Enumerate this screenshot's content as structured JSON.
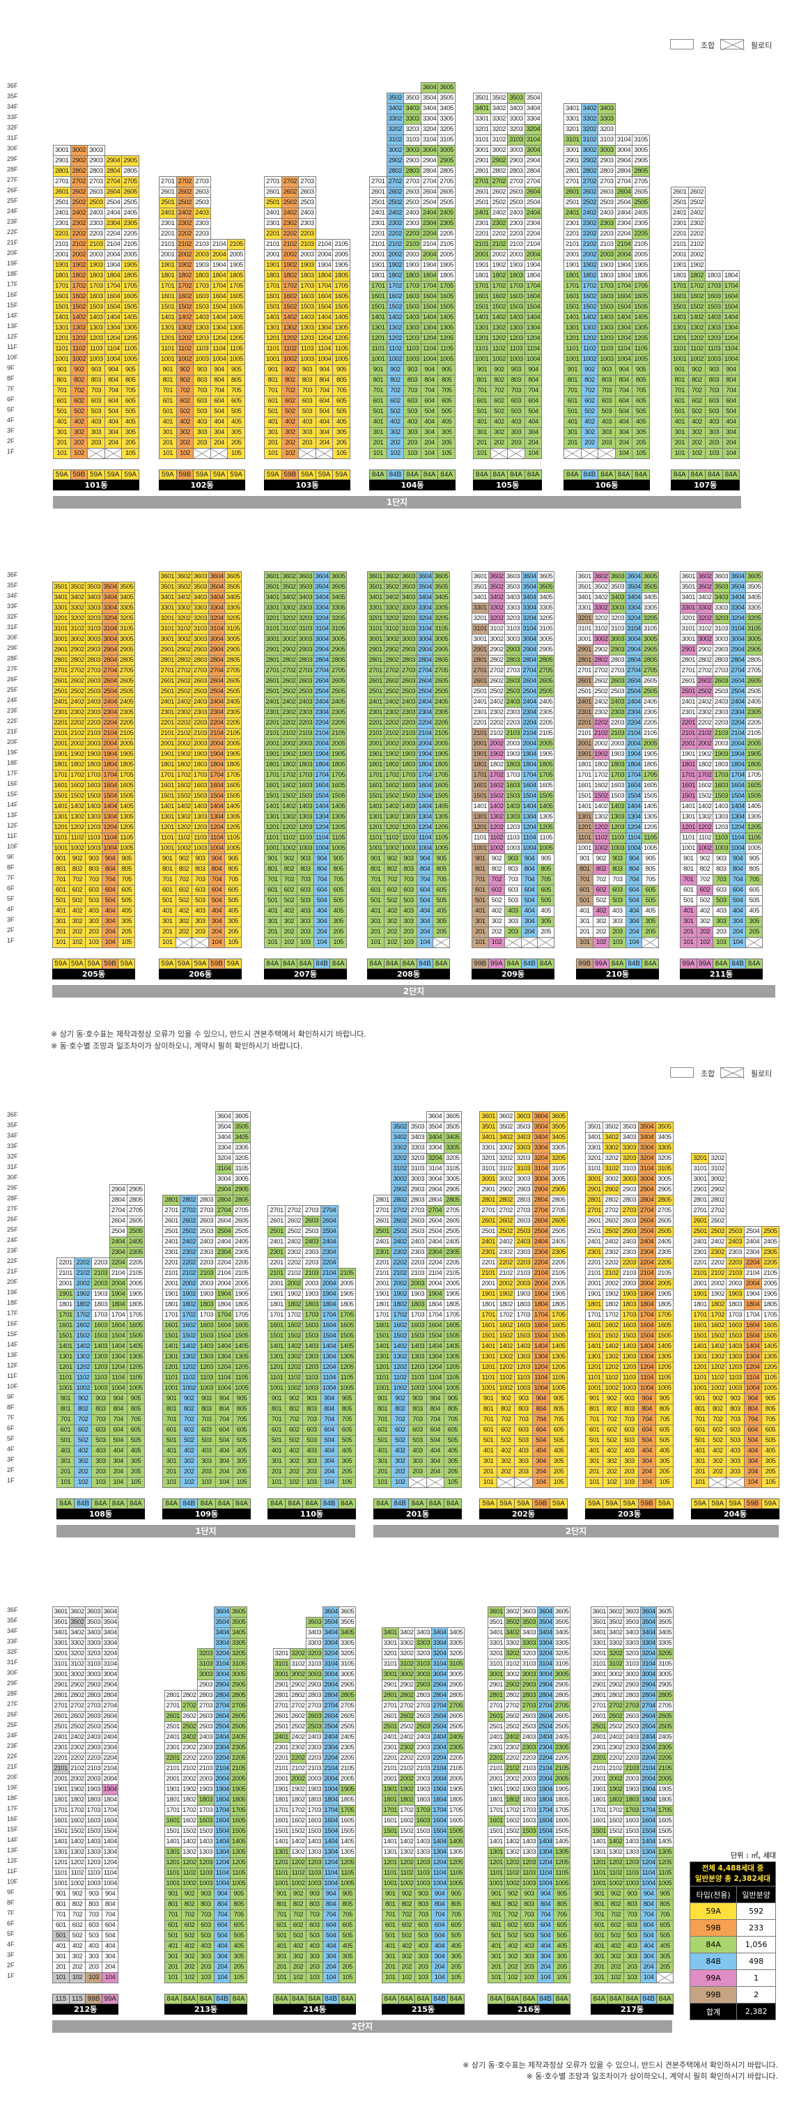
{
  "legend": {
    "member_label": "조합",
    "piloti_label": "필로티"
  },
  "type_colors": {
    "59A": "#ffdf3c",
    "59B": "#f5a150",
    "84A": "#aad46e",
    "84B": "#80c6ef",
    "99A": "#e08dc6",
    "99B": "#c6a483",
    "115": "#c9c9c9",
    "member": "#ffffff"
  },
  "floor_labels": [
    "1F",
    "2F",
    "3F",
    "4F",
    "5F",
    "6F",
    "7F",
    "8F",
    "9F",
    "10F",
    "11F",
    "12F",
    "13F",
    "14F",
    "15F",
    "16F",
    "17F",
    "18F",
    "19F",
    "20F",
    "21F",
    "22F",
    "23F",
    "24F",
    "25F",
    "26F",
    "27F",
    "28F",
    "29F",
    "30F",
    "31F",
    "32F",
    "33F",
    "34F",
    "35F",
    "36F"
  ],
  "rows": [
    {
      "sections": [
        {
          "label": "1단지"
        }
      ],
      "buildings": [
        {
          "name": "101동",
          "types": [
            "59A",
            "59B",
            "59A",
            "59A",
            "59A"
          ],
          "top_floors": [
            30,
            30,
            30,
            29,
            29
          ],
          "piloti_cols": [
            3,
            4
          ],
          "full_below": 18,
          "upper_fill": 0.3,
          "full_cols": [
            2
          ]
        },
        {
          "name": "102동",
          "types": [
            "59A",
            "59B",
            "59A",
            "59A",
            "59A"
          ],
          "top_floors": [
            27,
            27,
            27,
            21,
            21
          ],
          "piloti_cols": [
            3,
            4
          ],
          "full_below": 18,
          "upper_fill": 0.25,
          "full_cols": [
            2
          ]
        },
        {
          "name": "103동",
          "types": [
            "59A",
            "59B",
            "59A",
            "59A",
            "59A"
          ],
          "top_floors": [
            27,
            27,
            27,
            21,
            21
          ],
          "piloti_cols": [
            3,
            4
          ],
          "full_below": 18,
          "upper_fill": 0.25,
          "full_cols": [
            2
          ]
        },
        {
          "name": "104동",
          "types": [
            "84A",
            "84B",
            "84A",
            "84A",
            "84A"
          ],
          "top_floors": [
            27,
            35,
            35,
            36,
            36
          ],
          "piloti_cols": [],
          "full_below": 17,
          "upper_fill": 0.3,
          "full_cols": [
            2
          ]
        },
        {
          "name": "105동",
          "types": [
            "84A",
            "84A",
            "84A",
            "84A"
          ],
          "top_floors": [
            35,
            35,
            35,
            35
          ],
          "piloti_cols": [
            2,
            3
          ],
          "full_below": 17,
          "upper_fill": 0.3,
          "full_cols": []
        },
        {
          "name": "106동",
          "types": [
            "84A",
            "84B",
            "84A",
            "84A",
            "84A"
          ],
          "top_floors": [
            34,
            34,
            34,
            31,
            31
          ],
          "piloti_cols": [
            1,
            2,
            3
          ],
          "full_below": 17,
          "upper_fill": 0.25,
          "full_cols": [
            2
          ]
        },
        {
          "name": "107동",
          "types": [
            "84A",
            "84A",
            "84A",
            "84A"
          ],
          "top_floors": [
            26,
            26,
            18,
            18
          ],
          "piloti_cols": [],
          "full_below": 17,
          "upper_fill": 0.2,
          "full_cols": []
        }
      ]
    },
    {
      "sections": [
        {
          "label": "2단지"
        }
      ],
      "buildings": [
        {
          "name": "205동",
          "types": [
            "59A",
            "59A",
            "59A",
            "59B",
            "59A"
          ],
          "top_floors": [
            35,
            35,
            35,
            35,
            35
          ],
          "piloti_cols": [],
          "full_below": 36,
          "upper_fill": 1,
          "full_cols": [
            4
          ]
        },
        {
          "name": "206동",
          "types": [
            "59A",
            "59A",
            "59A",
            "59B",
            "59A"
          ],
          "top_floors": [
            36,
            36,
            36,
            36,
            36
          ],
          "piloti_cols": [
            2,
            3
          ],
          "full_below": 36,
          "upper_fill": 1,
          "full_cols": [
            4
          ]
        },
        {
          "name": "207동",
          "types": [
            "84A",
            "84A",
            "84A",
            "84B",
            "84A"
          ],
          "top_floors": [
            36,
            36,
            36,
            36,
            36
          ],
          "piloti_cols": [],
          "full_below": 36,
          "upper_fill": 1,
          "full_cols": [
            4
          ]
        },
        {
          "name": "208동",
          "types": [
            "84A",
            "84A",
            "84A",
            "84B",
            "84A"
          ],
          "top_floors": [
            36,
            36,
            36,
            36,
            36
          ],
          "piloti_cols": [
            5
          ],
          "full_below": 36,
          "upper_fill": 1,
          "full_cols": [
            4
          ]
        },
        {
          "name": "209동",
          "types": [
            "99B",
            "99A",
            "84A",
            "84B",
            "84A"
          ],
          "top_floors": [
            36,
            36,
            36,
            36,
            36
          ],
          "piloti_cols": [
            3,
            4,
            5
          ],
          "full_below": 1,
          "upper_fill": 0.45,
          "full_cols": [
            4
          ]
        },
        {
          "name": "210동",
          "types": [
            "99B",
            "99A",
            "84A",
            "84B",
            "84A"
          ],
          "top_floors": [
            36,
            36,
            36,
            36,
            36
          ],
          "piloti_cols": [
            5
          ],
          "full_below": 1,
          "upper_fill": 0.45,
          "full_cols": [
            4
          ]
        },
        {
          "name": "211동",
          "types": [
            "99A",
            "99A",
            "84A",
            "84B",
            "84A"
          ],
          "top_floors": [
            36,
            36,
            36,
            36,
            36
          ],
          "piloti_cols": [
            5
          ],
          "full_below": 1,
          "upper_fill": 0.45,
          "full_cols": [
            4
          ]
        }
      ]
    },
    {
      "sections": [
        {
          "label": "1단지"
        },
        {
          "label": "2단지"
        }
      ],
      "buildings": [
        {
          "name": "108동",
          "types": [
            "84A",
            "84B",
            "84A",
            "84A",
            "84A"
          ],
          "top_floors": [
            22,
            22,
            22,
            29,
            29
          ],
          "piloti_cols": [],
          "full_below": 16,
          "upper_fill": 0.3,
          "full_cols": [
            2
          ]
        },
        {
          "name": "109동",
          "types": [
            "84A",
            "84B",
            "84A",
            "84A",
            "84A"
          ],
          "top_floors": [
            28,
            28,
            28,
            36,
            36
          ],
          "piloti_cols": [],
          "full_below": 16,
          "upper_fill": 0.3,
          "full_cols": [
            2
          ]
        },
        {
          "name": "110동",
          "types": [
            "84A",
            "84A",
            "84A",
            "84B",
            "84A"
          ],
          "top_floors": [
            27,
            27,
            27,
            27,
            21
          ],
          "piloti_cols": [],
          "full_below": 16,
          "upper_fill": 0.3,
          "full_cols": [
            4
          ]
        },
        {
          "name": "201동",
          "types": [
            "84A",
            "84B",
            "84A",
            "84A",
            "84A"
          ],
          "top_floors": [
            28,
            35,
            35,
            36,
            36
          ],
          "piloti_cols": [
            3,
            4
          ],
          "full_below": 16,
          "upper_fill": 0.3,
          "full_cols": [
            2
          ]
        },
        {
          "name": "202동",
          "types": [
            "59A",
            "59A",
            "59A",
            "59B",
            "59A"
          ],
          "top_floors": [
            36,
            36,
            36,
            36,
            36
          ],
          "piloti_cols": [
            2,
            3
          ],
          "full_below": 16,
          "upper_fill": 0.4,
          "full_cols": [
            4
          ]
        },
        {
          "name": "203동",
          "types": [
            "59A",
            "59A",
            "59A",
            "59B",
            "59A"
          ],
          "top_floors": [
            35,
            35,
            35,
            35,
            35
          ],
          "piloti_cols": [],
          "full_below": 16,
          "upper_fill": 0.4,
          "full_cols": [
            4
          ]
        },
        {
          "name": "204동",
          "types": [
            "59A",
            "59A",
            "59A",
            "59B",
            "59A"
          ],
          "top_floors": [
            32,
            32,
            25,
            25,
            25
          ],
          "piloti_cols": [
            2,
            3
          ],
          "full_below": 16,
          "upper_fill": 0.3,
          "full_cols": []
        }
      ]
    },
    {
      "sections": [
        {
          "label": "2단지"
        }
      ],
      "buildings": [
        {
          "name": "212동",
          "types": [
            "115",
            "115",
            "99B",
            "99A"
          ],
          "top_floors": [
            36,
            36,
            36,
            36
          ],
          "piloti_cols": [],
          "full_below": 1,
          "upper_fill": 0.03,
          "full_cols": []
        },
        {
          "name": "213동",
          "types": [
            "84A",
            "84A",
            "84A",
            "84B",
            "84A"
          ],
          "top_floors": [
            28,
            28,
            32,
            36,
            36
          ],
          "piloti_cols": [],
          "full_below": 12,
          "upper_fill": 0.2,
          "full_cols": [
            4,
            5
          ]
        },
        {
          "name": "214동",
          "types": [
            "84A",
            "84A",
            "84A",
            "84B",
            "84A"
          ],
          "top_floors": [
            32,
            32,
            35,
            36,
            36
          ],
          "piloti_cols": [],
          "full_below": 12,
          "upper_fill": 0.25,
          "full_cols": [
            4
          ]
        },
        {
          "name": "215동",
          "types": [
            "84A",
            "84A",
            "84A",
            "84B",
            "84A"
          ],
          "top_floors": [
            34,
            34,
            34,
            34,
            34
          ],
          "piloti_cols": [],
          "full_below": 12,
          "upper_fill": 0.3,
          "full_cols": [
            4
          ]
        },
        {
          "name": "216동",
          "types": [
            "84A",
            "84A",
            "84A",
            "84B",
            "84A"
          ],
          "top_floors": [
            36,
            36,
            36,
            36,
            36
          ],
          "piloti_cols": [],
          "full_below": 12,
          "upper_fill": 0.25,
          "full_cols": [
            4
          ]
        },
        {
          "name": "217동",
          "types": [
            "84A",
            "84A",
            "84A",
            "84B",
            "84A"
          ],
          "top_floors": [
            36,
            36,
            36,
            36,
            36
          ],
          "piloti_cols": [
            5
          ],
          "full_below": 12,
          "upper_fill": 0.25,
          "full_cols": [
            4
          ]
        }
      ]
    }
  ],
  "notes_mid": [
    "※ 상기 동·호수표는 제작과정상 오류가 있을 수 있으니, 반드시 견본주택에서 확인하시기 바랍니다.",
    "※ 동·호수별 조망과 일조차이가 상이하오니, 계약시 필히 확인하시기 바랍니다."
  ],
  "notes_bottom": [
    "※ 상기 동·호수표는 제작과정상 오류가 있을 수 있으니, 반드시 견본주택에서 확인하시기 바랍니다.",
    "※ 동·호수별 조망과 일조차이가 상이하오니, 계약시 필히 확인하시기 바랍니다."
  ],
  "summary": {
    "unit_note": "단위 : ㎡, 세대",
    "title_line1": "전체 4,488세대 중",
    "title_line2": "일반분양 총 2,382세대",
    "col_type": "타입(전용)",
    "col_count": "일반분양",
    "rows": [
      {
        "type": "59A",
        "count": "592"
      },
      {
        "type": "59B",
        "count": "233"
      },
      {
        "type": "84A",
        "count": "1,056"
      },
      {
        "type": "84B",
        "count": "498"
      },
      {
        "type": "99A",
        "count": "1"
      },
      {
        "type": "99B",
        "count": "2"
      }
    ],
    "total_label": "합계",
    "total_count": "2,382"
  }
}
